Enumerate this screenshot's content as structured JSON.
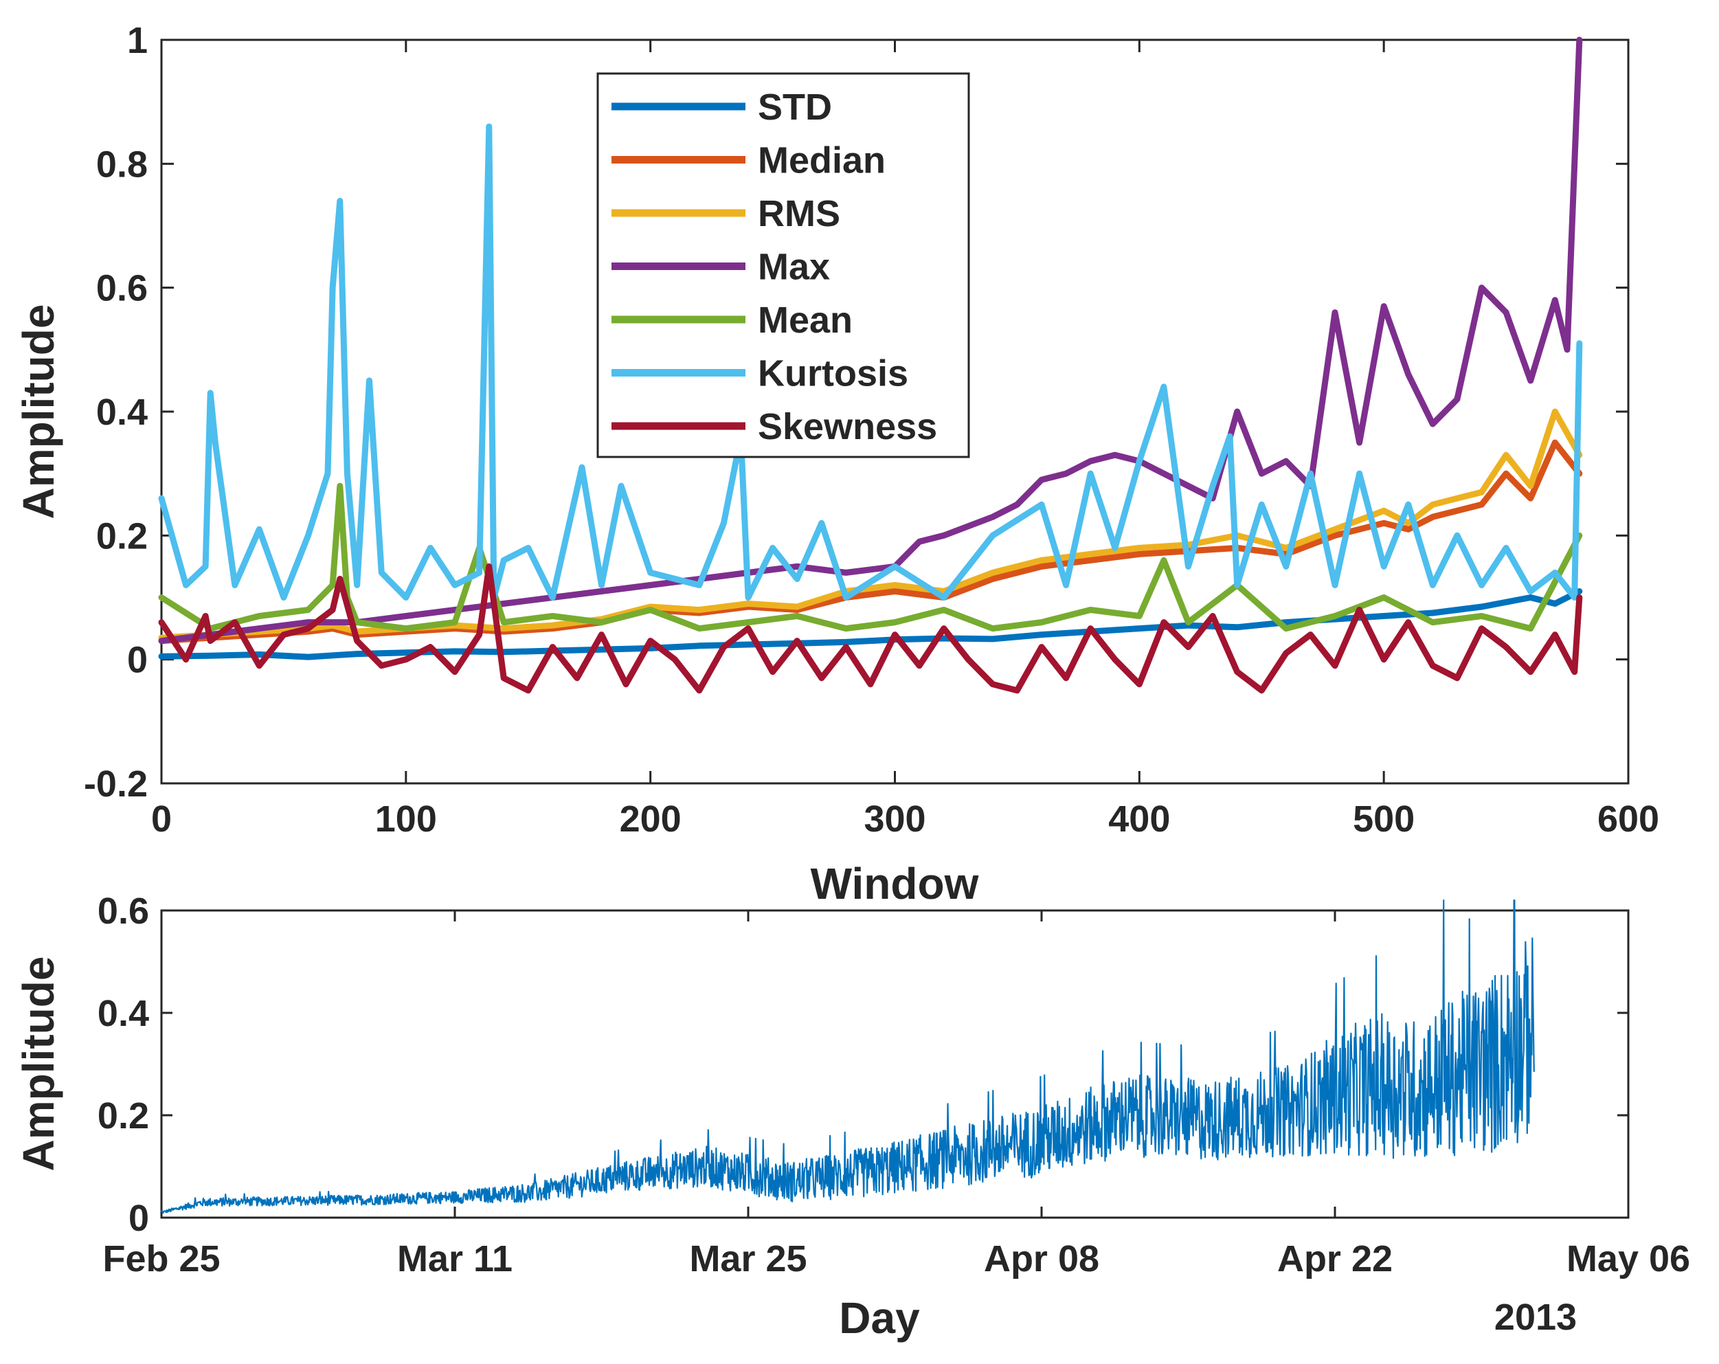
{
  "chart_data": [
    {
      "type": "line",
      "xlabel": "Window",
      "ylabel": "Amplitude",
      "xlim": [
        0,
        600
      ],
      "ylim": [
        -0.2,
        1
      ],
      "xticks": [
        "0",
        "100",
        "200",
        "300",
        "400",
        "500",
        "600"
      ],
      "yticks": [
        "-0.2",
        "0",
        "0.2",
        "0.4",
        "0.6",
        "0.8",
        "1"
      ],
      "legend_position": "top-center",
      "series": [
        {
          "name": "STD",
          "color": "#0072BD",
          "x": [
            0,
            20,
            40,
            60,
            80,
            100,
            120,
            140,
            160,
            180,
            200,
            220,
            240,
            260,
            280,
            300,
            320,
            340,
            360,
            380,
            400,
            420,
            440,
            460,
            480,
            500,
            520,
            540,
            560,
            570,
            580
          ],
          "y": [
            0.005,
            0.006,
            0.008,
            0.004,
            0.009,
            0.011,
            0.013,
            0.012,
            0.014,
            0.016,
            0.018,
            0.022,
            0.024,
            0.026,
            0.028,
            0.032,
            0.034,
            0.033,
            0.04,
            0.045,
            0.05,
            0.055,
            0.052,
            0.06,
            0.065,
            0.07,
            0.075,
            0.085,
            0.1,
            0.09,
            0.11
          ]
        },
        {
          "name": "Median",
          "color": "#D95319",
          "x": [
            0,
            20,
            40,
            60,
            70,
            80,
            100,
            120,
            140,
            160,
            180,
            200,
            220,
            240,
            260,
            280,
            300,
            320,
            340,
            360,
            380,
            400,
            420,
            440,
            460,
            480,
            500,
            510,
            520,
            530,
            540,
            550,
            560,
            570,
            580
          ],
          "y": [
            0.03,
            0.035,
            0.04,
            0.045,
            0.05,
            0.04,
            0.045,
            0.05,
            0.045,
            0.05,
            0.06,
            0.08,
            0.075,
            0.085,
            0.08,
            0.1,
            0.11,
            0.1,
            0.13,
            0.15,
            0.16,
            0.17,
            0.175,
            0.18,
            0.17,
            0.2,
            0.22,
            0.21,
            0.23,
            0.24,
            0.25,
            0.3,
            0.26,
            0.35,
            0.3
          ]
        },
        {
          "name": "RMS",
          "color": "#EDB120",
          "x": [
            0,
            20,
            40,
            60,
            70,
            80,
            100,
            120,
            140,
            160,
            180,
            200,
            220,
            240,
            260,
            280,
            300,
            320,
            340,
            360,
            380,
            400,
            420,
            440,
            460,
            480,
            500,
            510,
            520,
            530,
            540,
            550,
            560,
            570,
            580
          ],
          "y": [
            0.035,
            0.04,
            0.045,
            0.05,
            0.055,
            0.045,
            0.05,
            0.055,
            0.05,
            0.055,
            0.065,
            0.085,
            0.08,
            0.09,
            0.085,
            0.11,
            0.12,
            0.11,
            0.14,
            0.16,
            0.17,
            0.18,
            0.185,
            0.2,
            0.18,
            0.21,
            0.24,
            0.22,
            0.25,
            0.26,
            0.27,
            0.33,
            0.28,
            0.4,
            0.33
          ]
        },
        {
          "name": "Max",
          "color": "#7E2F8E",
          "x": [
            0,
            20,
            40,
            60,
            80,
            100,
            120,
            140,
            160,
            180,
            200,
            220,
            240,
            260,
            280,
            300,
            310,
            320,
            340,
            350,
            360,
            370,
            380,
            390,
            400,
            410,
            420,
            430,
            440,
            450,
            460,
            470,
            480,
            490,
            500,
            510,
            520,
            530,
            540,
            550,
            560,
            570,
            575,
            580
          ],
          "y": [
            0.03,
            0.04,
            0.05,
            0.06,
            0.06,
            0.07,
            0.08,
            0.09,
            0.1,
            0.11,
            0.12,
            0.13,
            0.14,
            0.15,
            0.14,
            0.15,
            0.19,
            0.2,
            0.23,
            0.25,
            0.29,
            0.3,
            0.32,
            0.33,
            0.32,
            0.3,
            0.28,
            0.26,
            0.4,
            0.3,
            0.32,
            0.28,
            0.56,
            0.35,
            0.57,
            0.46,
            0.38,
            0.42,
            0.6,
            0.56,
            0.45,
            0.58,
            0.5,
            1.0
          ]
        },
        {
          "name": "Mean",
          "color": "#77AC30",
          "x": [
            0,
            20,
            40,
            60,
            70,
            73,
            76,
            80,
            100,
            120,
            130,
            140,
            160,
            180,
            200,
            220,
            240,
            260,
            280,
            300,
            320,
            340,
            360,
            380,
            400,
            410,
            420,
            440,
            460,
            480,
            500,
            520,
            540,
            560,
            580
          ],
          "y": [
            0.1,
            0.05,
            0.07,
            0.08,
            0.12,
            0.28,
            0.1,
            0.06,
            0.05,
            0.06,
            0.18,
            0.06,
            0.07,
            0.06,
            0.08,
            0.05,
            0.06,
            0.07,
            0.05,
            0.06,
            0.08,
            0.05,
            0.06,
            0.08,
            0.07,
            0.16,
            0.06,
            0.12,
            0.05,
            0.07,
            0.1,
            0.06,
            0.07,
            0.05,
            0.2
          ]
        },
        {
          "name": "Kurtosis",
          "color": "#4DBEEE",
          "x": [
            0,
            10,
            18,
            20,
            22,
            30,
            40,
            50,
            60,
            68,
            70,
            73,
            76,
            80,
            85,
            90,
            100,
            110,
            120,
            130,
            134,
            136,
            140,
            150,
            160,
            172,
            180,
            188,
            200,
            220,
            230,
            237,
            240,
            250,
            260,
            270,
            280,
            300,
            320,
            340,
            360,
            370,
            380,
            390,
            400,
            410,
            420,
            430,
            437,
            440,
            450,
            460,
            470,
            480,
            490,
            500,
            510,
            520,
            530,
            540,
            550,
            560,
            570,
            578,
            580
          ],
          "y": [
            0.26,
            0.12,
            0.15,
            0.43,
            0.35,
            0.12,
            0.21,
            0.1,
            0.2,
            0.3,
            0.6,
            0.74,
            0.3,
            0.12,
            0.45,
            0.14,
            0.1,
            0.18,
            0.12,
            0.14,
            0.86,
            0.1,
            0.16,
            0.18,
            0.1,
            0.31,
            0.12,
            0.28,
            0.14,
            0.12,
            0.22,
            0.36,
            0.1,
            0.18,
            0.13,
            0.22,
            0.1,
            0.15,
            0.1,
            0.2,
            0.25,
            0.12,
            0.3,
            0.18,
            0.32,
            0.44,
            0.15,
            0.28,
            0.36,
            0.12,
            0.25,
            0.15,
            0.3,
            0.12,
            0.3,
            0.15,
            0.25,
            0.12,
            0.2,
            0.12,
            0.18,
            0.11,
            0.14,
            0.1,
            0.51
          ]
        },
        {
          "name": "Skewness",
          "color": "#A2142F",
          "x": [
            0,
            10,
            18,
            20,
            30,
            40,
            50,
            60,
            70,
            73,
            80,
            90,
            100,
            110,
            120,
            130,
            134,
            140,
            150,
            160,
            170,
            180,
            190,
            200,
            210,
            220,
            230,
            240,
            250,
            260,
            270,
            280,
            290,
            300,
            310,
            320,
            330,
            340,
            350,
            360,
            370,
            380,
            390,
            400,
            410,
            420,
            430,
            440,
            450,
            460,
            470,
            480,
            490,
            500,
            510,
            520,
            530,
            540,
            550,
            560,
            570,
            578,
            580
          ],
          "y": [
            0.06,
            0.0,
            0.07,
            0.03,
            0.06,
            -0.01,
            0.04,
            0.05,
            0.08,
            0.13,
            0.03,
            -0.01,
            0.0,
            0.02,
            -0.02,
            0.04,
            0.15,
            -0.03,
            -0.05,
            0.02,
            -0.03,
            0.04,
            -0.04,
            0.03,
            0.0,
            -0.05,
            0.02,
            0.05,
            -0.02,
            0.03,
            -0.03,
            0.02,
            -0.04,
            0.04,
            -0.01,
            0.05,
            0.0,
            -0.04,
            -0.05,
            0.02,
            -0.03,
            0.05,
            0.0,
            -0.04,
            0.06,
            0.02,
            0.07,
            -0.02,
            -0.05,
            0.01,
            0.04,
            -0.01,
            0.08,
            0.0,
            0.06,
            -0.01,
            -0.03,
            0.05,
            0.02,
            -0.02,
            0.04,
            -0.02,
            0.1
          ]
        }
      ]
    },
    {
      "type": "line",
      "xlabel": "Day",
      "ylabel": "Amplitude",
      "year_label": "2013",
      "xlim": [
        0,
        70
      ],
      "ylim": [
        0,
        0.6
      ],
      "xticks": [
        "Feb 25",
        "Mar 11",
        "Mar 25",
        "Apr 08",
        "Apr 22",
        "May 06"
      ],
      "yticks": [
        "0",
        "0.2",
        "0.4",
        "0.6"
      ],
      "series": [
        {
          "name": "Amplitude",
          "color": "#0072BD",
          "trend_x": [
            0,
            2,
            10,
            14,
            18,
            22,
            26,
            30,
            34,
            38,
            42,
            46,
            50,
            54,
            56,
            58,
            60,
            62,
            63.5,
            65.5
          ],
          "trend_y": [
            0.01,
            0.03,
            0.035,
            0.04,
            0.05,
            0.08,
            0.1,
            0.07,
            0.09,
            0.12,
            0.15,
            0.2,
            0.19,
            0.21,
            0.24,
            0.26,
            0.25,
            0.28,
            0.3,
            0.36
          ],
          "noise_amplitude": [
            0.002,
            0.008,
            0.01,
            0.012,
            0.02,
            0.03,
            0.04,
            0.04,
            0.05,
            0.06,
            0.07,
            0.08,
            0.08,
            0.09,
            0.12,
            0.14,
            0.14,
            0.16,
            0.18,
            0.2
          ],
          "peak": 0.62
        }
      ]
    }
  ]
}
